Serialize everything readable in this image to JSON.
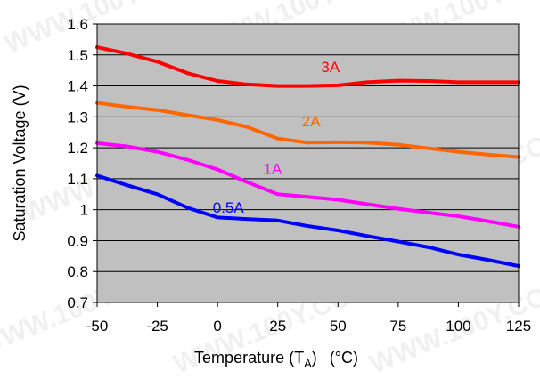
{
  "chart_data": {
    "type": "line",
    "xlabel_main": "Temperature (T",
    "xlabel_sub": "A",
    "xlabel_close": ")",
    "xlabel_unit": "(°C)",
    "ylabel": "Saturation Voltage (V)",
    "xlim": [
      -50,
      125
    ],
    "ylim": [
      0.7,
      1.6
    ],
    "xticks": [
      "-50",
      "-25",
      "0",
      "25",
      "50",
      "75",
      "100",
      "125"
    ],
    "yticks": [
      "0.7",
      "0.8",
      "0.9",
      "1",
      "1.1",
      "1.2",
      "1.3",
      "1.4",
      "1.5",
      "1.6"
    ],
    "grid": true,
    "plot_background": "#c0c0c0",
    "watermark": "WWW.100Y.COM.TW",
    "series": [
      {
        "name": "3A",
        "color": "#ff0000",
        "x": [
          -50,
          -38,
          -25,
          -12,
          0,
          12,
          25,
          37,
          50,
          62,
          75,
          88,
          100,
          112,
          125
        ],
        "y": [
          1.525,
          1.505,
          1.478,
          1.44,
          1.416,
          1.405,
          1.4,
          1.4,
          1.402,
          1.412,
          1.417,
          1.416,
          1.412,
          1.412,
          1.412
        ]
      },
      {
        "name": "2A",
        "color": "#ff6600",
        "x": [
          -50,
          -38,
          -25,
          -12,
          0,
          12,
          25,
          37,
          50,
          62,
          75,
          88,
          100,
          112,
          125
        ],
        "y": [
          1.345,
          1.333,
          1.322,
          1.305,
          1.29,
          1.268,
          1.23,
          1.217,
          1.218,
          1.217,
          1.21,
          1.198,
          1.187,
          1.178,
          1.17
        ]
      },
      {
        "name": "1A",
        "color": "#ff00ff",
        "x": [
          -50,
          -38,
          -25,
          -12,
          0,
          12,
          25,
          37,
          50,
          62,
          75,
          88,
          100,
          112,
          125
        ],
        "y": [
          1.215,
          1.205,
          1.187,
          1.16,
          1.13,
          1.09,
          1.05,
          1.042,
          1.032,
          1.018,
          1.003,
          0.99,
          0.979,
          0.963,
          0.945
        ]
      },
      {
        "name": "0.5A",
        "color": "#0000ff",
        "x": [
          -50,
          -38,
          -25,
          -12,
          0,
          12,
          25,
          37,
          50,
          62,
          75,
          88,
          100,
          112,
          125
        ],
        "y": [
          1.11,
          1.08,
          1.05,
          1.005,
          0.975,
          0.97,
          0.965,
          0.948,
          0.933,
          0.915,
          0.897,
          0.878,
          0.855,
          0.838,
          0.818
        ]
      }
    ]
  }
}
